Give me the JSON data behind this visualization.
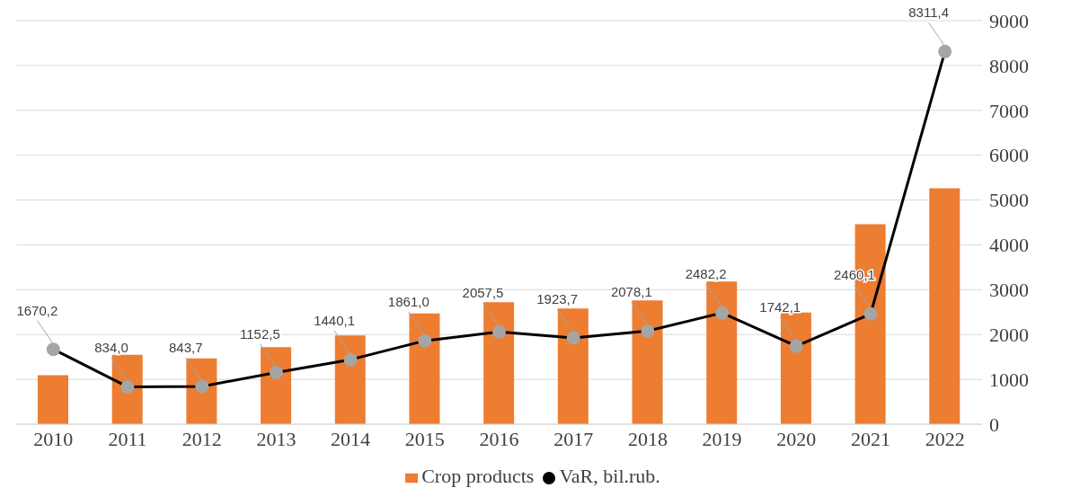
{
  "chart_data": {
    "type": "bar",
    "categories": [
      "2010",
      "2011",
      "2012",
      "2013",
      "2014",
      "2015",
      "2016",
      "2017",
      "2018",
      "2019",
      "2020",
      "2021",
      "2022"
    ],
    "series": [
      {
        "name": "Crop products",
        "color": "#ed7d31",
        "values": [
          1090,
          1550,
          1470,
          1720,
          1980,
          2470,
          2720,
          2580,
          2760,
          3180,
          2490,
          4460,
          5260
        ]
      },
      {
        "name": "VaR,  bil.rub.",
        "type": "line",
        "color": "#000000",
        "values": [
          1670.2,
          834.0,
          843.7,
          1152.5,
          1440.1,
          1861.0,
          2057.5,
          1923.7,
          2078.1,
          2482.2,
          1742.1,
          2460.1,
          8311.4
        ],
        "value_labels": [
          "1670,2",
          "834,0",
          "843,7",
          "1152,5",
          "1440,1",
          "1861,0",
          "2057,5",
          "1923,7",
          "2078,1",
          "2482,2",
          "1742,1",
          "2460,1",
          "8311,4"
        ]
      }
    ],
    "ylim": [
      0,
      9000
    ],
    "yticks": [
      0,
      1000,
      2000,
      3000,
      4000,
      5000,
      6000,
      7000,
      8000,
      9000
    ],
    "grid": "y",
    "legend": "bottom",
    "marker": "circle",
    "line_style": "solid"
  }
}
